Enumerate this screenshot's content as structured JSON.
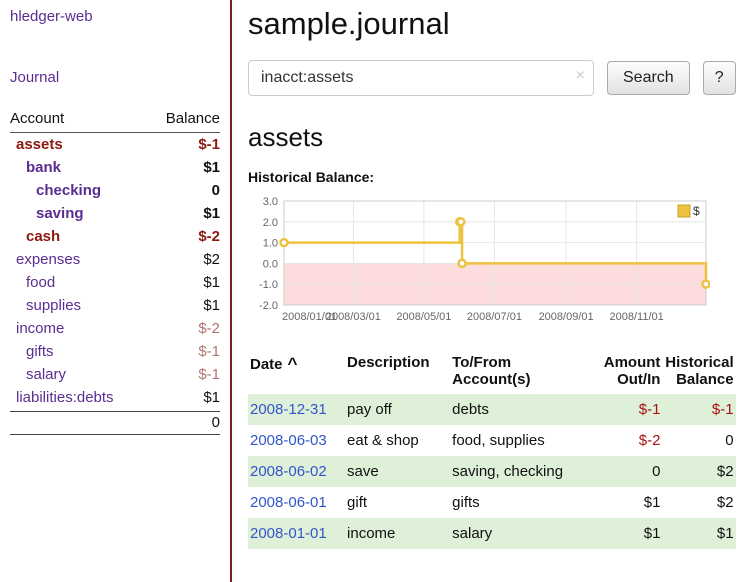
{
  "colors": {
    "purple": "#5b2d91",
    "neg_dark": "#8b1a10",
    "neg_soft": "#b07770",
    "neg_table": "#aa1111",
    "link_blue": "#3355cc",
    "row_green": "#dff0d8",
    "divider": "#7a2020",
    "chart_line": "#edc240",
    "chart_line_edge": "#c9a227",
    "chart_negative_bg": "#fcdcdc",
    "grid": "#e6e6e6",
    "plot_border": "#cccccc"
  },
  "sidebar": {
    "brand": "hledger-web",
    "journal_label": "Journal",
    "table_headers": {
      "account": "Account",
      "balance": "Balance"
    },
    "accounts": [
      {
        "name": "assets",
        "indent": 0,
        "row_class": "bold",
        "name_class": "neg",
        "balance": "$-1",
        "balance_class": "neg"
      },
      {
        "name": "bank",
        "indent": 1,
        "row_class": "bold",
        "balance": "$1"
      },
      {
        "name": "checking",
        "indent": 2,
        "row_class": "bold",
        "balance": "0"
      },
      {
        "name": "saving",
        "indent": 2,
        "row_class": "bold",
        "balance": "$1"
      },
      {
        "name": "cash",
        "indent": 1,
        "row_class": "bold",
        "name_class": "neg",
        "balance": "$-2",
        "balance_class": "neg"
      },
      {
        "name": "expenses",
        "indent": 0,
        "balance": "$2"
      },
      {
        "name": "food",
        "indent": 1,
        "balance": "$1"
      },
      {
        "name": "supplies",
        "indent": 1,
        "balance": "$1"
      },
      {
        "name": "income",
        "indent": 0,
        "balance": "$-2",
        "balance_class": "neg-soft"
      },
      {
        "name": "gifts",
        "indent": 1,
        "balance": "$-1",
        "balance_class": "neg-soft"
      },
      {
        "name": "salary",
        "indent": 1,
        "balance": "$-1",
        "balance_class": "neg-soft"
      },
      {
        "name": "liabilities:debts",
        "indent": 0,
        "balance": "$1"
      }
    ],
    "total": "0"
  },
  "main": {
    "title": "sample.journal",
    "search": {
      "value": "inacct:assets",
      "clear_icon": "×",
      "button_label": "Search",
      "help_label": "?"
    },
    "account_heading": "assets"
  },
  "chart_data": {
    "type": "line",
    "step": true,
    "title": "Historical Balance:",
    "legend": "$",
    "x_start": "2008-01-01",
    "x_span_days": 365,
    "ylim": [
      -2,
      3
    ],
    "y_ticks": [
      -2,
      -1,
      0,
      1,
      2,
      3
    ],
    "x_ticks": [
      {
        "date": "2008-01-01",
        "label": "2008/01/01"
      },
      {
        "date": "2008-03-01",
        "label": "2008/03/01"
      },
      {
        "date": "2008-05-01",
        "label": "2008/05/01"
      },
      {
        "date": "2008-07-01",
        "label": "2008/07/01"
      },
      {
        "date": "2008-09-01",
        "label": "2008/09/01"
      },
      {
        "date": "2008-11-01",
        "label": "2008/11/01"
      }
    ],
    "points": [
      {
        "date": "2008-01-01",
        "value": 1
      },
      {
        "date": "2008-06-01",
        "value": 2
      },
      {
        "date": "2008-06-02",
        "value": 2
      },
      {
        "date": "2008-06-03",
        "value": 0
      },
      {
        "date": "2008-12-31",
        "value": -1
      }
    ],
    "negative_region_shaded": true,
    "grid": true,
    "legend_position": "top-right"
  },
  "register": {
    "sort_icon": "^",
    "headers": [
      {
        "line1": "Date",
        "line2": ""
      },
      {
        "line1": "Description",
        "line2": ""
      },
      {
        "line1": "To/From",
        "line2": "Account(s)"
      },
      {
        "line1": "Amount",
        "line2": "Out/In"
      },
      {
        "line1": "Historical",
        "line2": "Balance"
      }
    ],
    "rows": [
      {
        "date": "2008-12-31",
        "description": "pay off",
        "accounts": "debts",
        "amount": "$-1",
        "balance": "$-1",
        "shaded": true
      },
      {
        "date": "2008-06-03",
        "description": "eat & shop",
        "accounts": "food, supplies",
        "amount": "$-2",
        "balance": "0",
        "shaded": false
      },
      {
        "date": "2008-06-02",
        "description": "save",
        "accounts": "saving, checking",
        "amount": "0",
        "balance": "$2",
        "shaded": true
      },
      {
        "date": "2008-06-01",
        "description": "gift",
        "accounts": "gifts",
        "amount": "$1",
        "balance": "$2",
        "shaded": false
      },
      {
        "date": "2008-01-01",
        "description": "income",
        "accounts": "salary",
        "amount": "$1",
        "balance": "$1",
        "shaded": true
      }
    ]
  }
}
